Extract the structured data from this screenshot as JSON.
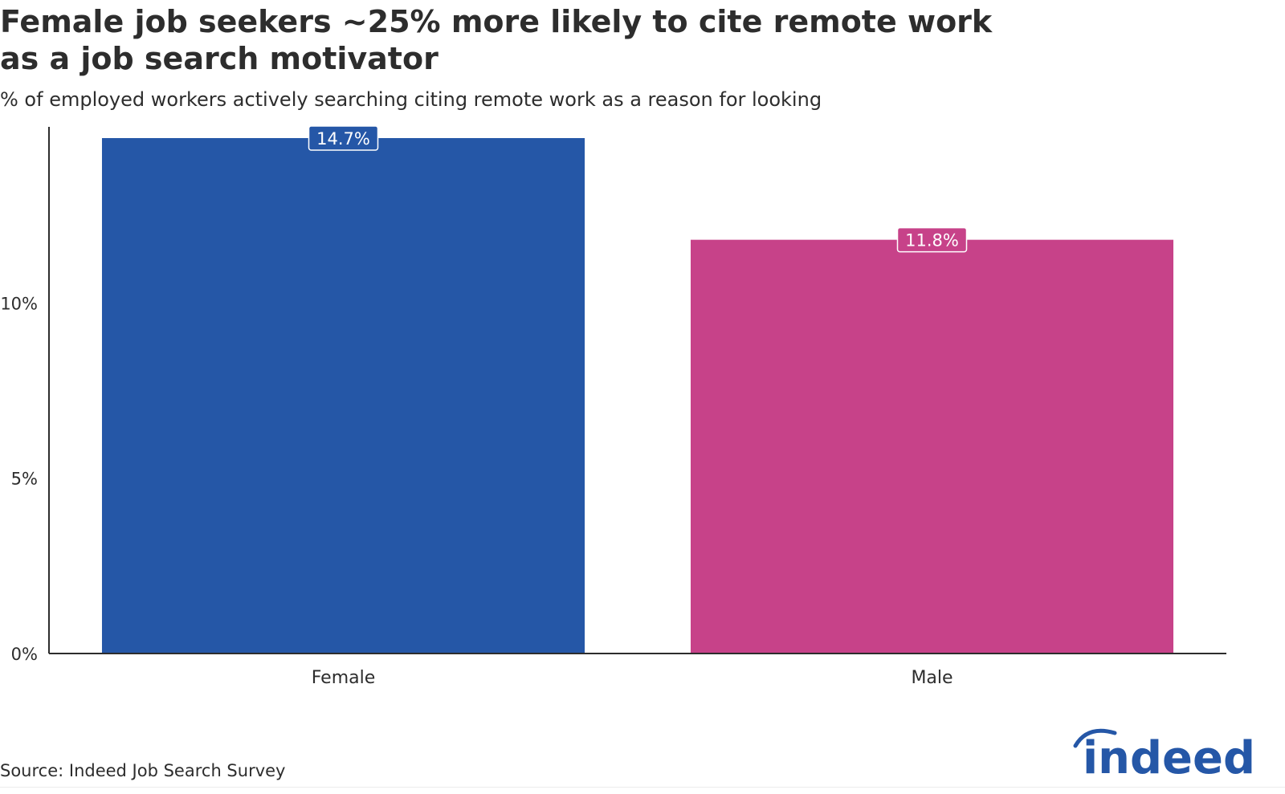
{
  "title": "Female job seekers ~25% more likely to cite remote work\n as a job search motivator",
  "subtitle": "% of employed workers actively searching citing remote work as a reason for looking",
  "source": "Source: Indeed Job Search Survey",
  "logo_text": "indeed",
  "colors": {
    "female": "#2557a7",
    "male": "#c74289",
    "text": "#2d2d2d",
    "axis": "#2d2d2d",
    "brand": "#2557a7"
  },
  "chart_data": {
    "type": "bar",
    "categories": [
      "Female",
      "Male"
    ],
    "values": [
      14.7,
      11.8
    ],
    "data_labels": [
      "14.7%",
      "11.8%"
    ],
    "bar_colors": [
      "#2557a7",
      "#c74289"
    ],
    "ylim": [
      0,
      15
    ],
    "yticks": [
      0,
      5,
      10
    ],
    "ytick_labels": [
      "0%",
      "5%",
      "10%"
    ],
    "grid": false,
    "legend": "none"
  }
}
